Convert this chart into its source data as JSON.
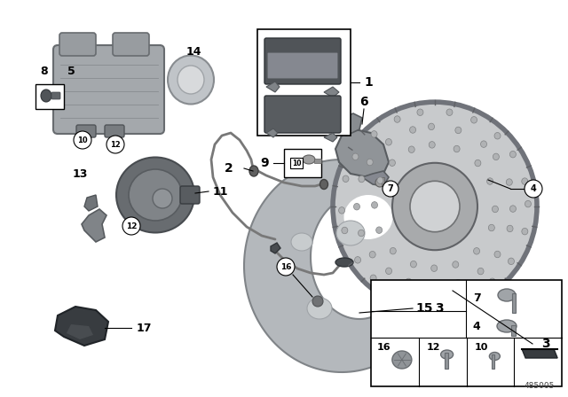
{
  "bg": "#ffffff",
  "diagram_id": "485005",
  "pc_light": "#c0c4c8",
  "pc_mid": "#909498",
  "pc_dark": "#585c60",
  "pc_very_dark": "#383c40"
}
